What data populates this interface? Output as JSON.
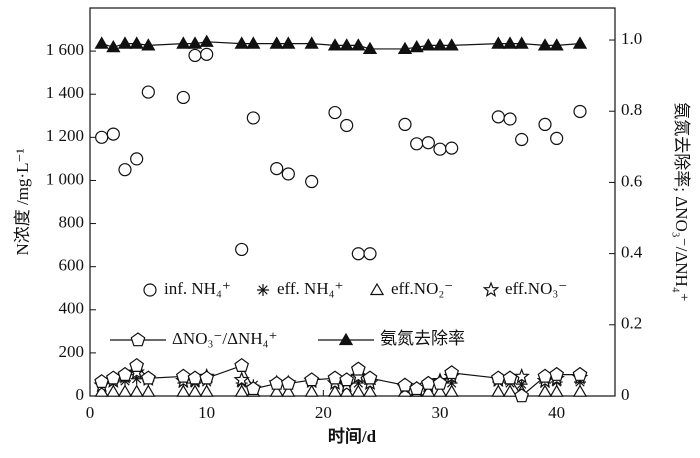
{
  "chart_data": {
    "type": "scatter",
    "x_label": "时间/d",
    "y_label": "N浓度 /mg·L⁻¹",
    "y2_label": "氨氮去除率; ΔNO₃⁻/ΔNH₄⁺",
    "xlim": [
      0,
      45
    ],
    "xticks": [
      0,
      10,
      20,
      30,
      40
    ],
    "ylim": [
      0,
      1800
    ],
    "yticks": [
      0,
      200,
      400,
      600,
      800,
      {
        "value": 1000,
        "label": "1 000"
      },
      {
        "value": 1200,
        "label": "1 200"
      },
      {
        "value": 1400,
        "label": "1 400"
      },
      {
        "value": 1600,
        "label": "1 600"
      }
    ],
    "y2lim": [
      0,
      1.09
    ],
    "y2ticks": [
      {
        "value": 0,
        "label": "0"
      },
      0.2,
      0.4,
      0.6,
      0.8,
      {
        "value": 1,
        "label": "1.0"
      }
    ],
    "x": [
      1,
      2,
      3,
      4,
      5,
      8,
      9,
      10,
      13,
      14,
      16,
      17,
      19,
      21,
      22,
      23,
      24,
      27,
      28,
      29,
      30,
      31,
      35,
      36,
      37,
      39,
      40,
      42
    ],
    "series": [
      {
        "name": "inf. NH₄⁺",
        "marker": "circle",
        "color": "#111",
        "values": [
          1200,
          1215,
          1050,
          1100,
          1410,
          1385,
          1580,
          1585,
          680,
          1290,
          1055,
          1030,
          995,
          1315,
          1255,
          660,
          660,
          1260,
          1170,
          1175,
          1145,
          1150,
          1295,
          1285,
          1190,
          1260,
          1195,
          1320
        ]
      },
      {
        "name": "eff. NH₄⁺",
        "marker": "asterisk",
        "color": "#111",
        "values": [
          60,
          65,
          70,
          80,
          70,
          60,
          60,
          65,
          60,
          50,
          55,
          55,
          60,
          65,
          60,
          60,
          55,
          45,
          40,
          50,
          55,
          60,
          65,
          60,
          55,
          60,
          65,
          65
        ]
      },
      {
        "name": "eff.NO₂⁻",
        "marker": "triangle",
        "color": "#111",
        "values": [
          20,
          20,
          20,
          20,
          20,
          20,
          20,
          20,
          20,
          20,
          20,
          20,
          20,
          20,
          20,
          20,
          20,
          20,
          20,
          20,
          20,
          20,
          20,
          20,
          20,
          20,
          20,
          20
        ]
      },
      {
        "name": "eff.NO₃⁻",
        "marker": "star",
        "color": "#111",
        "values": [
          50,
          70,
          90,
          110,
          80,
          70,
          75,
          90,
          75,
          35,
          60,
          60,
          70,
          60,
          50,
          90,
          60,
          40,
          30,
          50,
          70,
          90,
          75,
          80,
          90,
          70,
          80,
          85
        ]
      },
      {
        "name": "ΔNO₃⁻/ΔNH₄⁺",
        "marker": "pentagon",
        "line": true,
        "axis": "y2",
        "color": "#111",
        "values": [
          0.04,
          0.05,
          0.06,
          0.085,
          0.05,
          0.055,
          0.05,
          0.05,
          0.085,
          0.02,
          0.035,
          0.035,
          0.045,
          0.05,
          0.045,
          0.075,
          0.05,
          0.03,
          0.02,
          0.035,
          0.035,
          0.065,
          0.05,
          0.05,
          0,
          0.055,
          0.06,
          0.06
        ]
      },
      {
        "name": "氨氮去除率",
        "marker": "filled-triangle",
        "line": true,
        "axis": "y2",
        "color": "#111",
        "values": [
          0.99,
          0.98,
          0.99,
          0.99,
          0.985,
          0.99,
          0.99,
          0.995,
          0.99,
          0.99,
          0.99,
          0.99,
          0.99,
          0.985,
          0.985,
          0.985,
          0.975,
          0.975,
          0.98,
          0.985,
          0.985,
          0.985,
          0.99,
          0.99,
          0.99,
          0.985,
          0.985,
          0.99
        ]
      }
    ]
  }
}
